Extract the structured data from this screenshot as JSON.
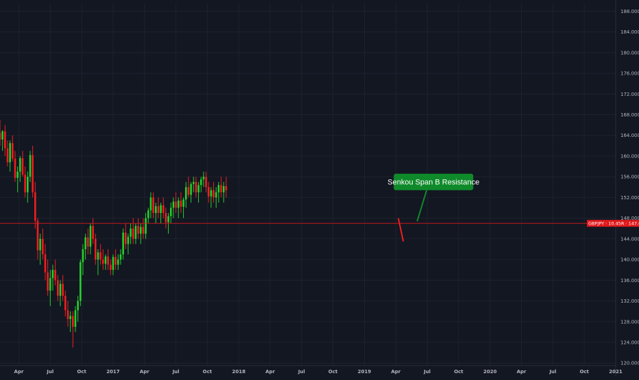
{
  "chart_data": {
    "type": "candlestick",
    "symbol_tag": "GBPJPY · 10.45R · 147.000",
    "current_price": 147.0,
    "y_axis": {
      "range": [
        119.5,
        189.5
      ],
      "ticks": [
        120,
        124,
        128,
        132,
        136,
        140,
        144,
        148,
        152,
        156,
        160,
        164,
        168,
        172,
        176,
        180,
        184,
        188
      ],
      "tick_labels": [
        "120.000",
        "124.000",
        "128.000",
        "132.000",
        "136.000",
        "140.000",
        "144.000",
        "148.000",
        "152.000",
        "156.000",
        "160.000",
        "164.000",
        "168.000",
        "172.000",
        "176.000",
        "180.000",
        "184.000",
        "188.000"
      ]
    },
    "x_axis": {
      "range": [
        2016.1,
        2021.0
      ],
      "ticks": [
        2016.25,
        2016.5,
        2016.75,
        2017.0,
        2017.25,
        2017.5,
        2017.75,
        2018.0,
        2018.25,
        2018.5,
        2018.75,
        2019.0,
        2019.25,
        2019.5,
        2019.75,
        2020.0,
        2020.25,
        2020.5,
        2020.75,
        2021.0
      ],
      "tick_labels": [
        "Apr",
        "Jul",
        "Oct",
        "2017",
        "Apr",
        "Jul",
        "Oct",
        "2018",
        "Apr",
        "Jul",
        "Oct",
        "2019",
        "Apr",
        "Jul",
        "Oct",
        "2020",
        "Apr",
        "Jul",
        "Oct",
        "2021"
      ]
    },
    "grid": true,
    "colors": {
      "background": "#131722",
      "grid": "#1e222d",
      "up": "#26d12a",
      "down": "#f01f1f",
      "ma200": "#f08a8a",
      "senkou_b": "#e0191c",
      "kijun": "#8b1e24",
      "tenkan": "#2f6fb3",
      "chikou": "#3c7a2f",
      "kumo_bear": "#4a1416",
      "kumo_bull": "#1f3a22",
      "callout": "#0f8a2a",
      "price_line": "#e0191c"
    },
    "annotations": [
      {
        "type": "callout",
        "text": "Senkou Span B Resistance",
        "x": 2019.55,
        "y": 155.0,
        "points_to": [
          2019.42,
          147.4
        ]
      },
      {
        "type": "arrow",
        "direction": "down",
        "from": [
          2019.27,
          148.0
        ],
        "to": [
          2019.31,
          143.5
        ]
      }
    ],
    "candles": [
      [
        2016.1,
        164.5,
        167,
        162,
        163.2
      ],
      [
        2016.12,
        163.2,
        165,
        161,
        164.8
      ],
      [
        2016.14,
        164.8,
        166,
        160,
        161.5
      ],
      [
        2016.16,
        161.5,
        163,
        158,
        158.8
      ],
      [
        2016.18,
        158.8,
        163,
        157,
        162.5
      ],
      [
        2016.2,
        162.5,
        164,
        159,
        159.5
      ],
      [
        2016.22,
        159.5,
        161,
        155,
        155.8
      ],
      [
        2016.24,
        155.8,
        158,
        153,
        157.0
      ],
      [
        2016.26,
        157.0,
        160,
        155,
        159.6
      ],
      [
        2016.28,
        159.6,
        161,
        156,
        156.4
      ],
      [
        2016.3,
        156.4,
        158,
        152,
        153.0
      ],
      [
        2016.32,
        153.0,
        157,
        151,
        156.0
      ],
      [
        2016.34,
        156.0,
        161,
        155,
        160.2
      ],
      [
        2016.36,
        160.2,
        162,
        152,
        153.0
      ],
      [
        2016.38,
        153.0,
        155,
        146,
        147.5
      ],
      [
        2016.4,
        147.5,
        148,
        140,
        141.8
      ],
      [
        2016.42,
        141.8,
        145,
        139,
        144.0
      ],
      [
        2016.44,
        144.0,
        146,
        140,
        141.0
      ],
      [
        2016.46,
        141.0,
        143,
        136,
        137.5
      ],
      [
        2016.48,
        137.5,
        140,
        133,
        134.0
      ],
      [
        2016.5,
        134.0,
        138,
        131,
        136.4
      ],
      [
        2016.52,
        136.4,
        139,
        134,
        138.0
      ],
      [
        2016.54,
        138.0,
        140,
        135,
        136.0
      ],
      [
        2016.56,
        136.0,
        137,
        132,
        133.0
      ],
      [
        2016.58,
        133.0,
        136,
        131,
        135.3
      ],
      [
        2016.6,
        135.3,
        137,
        132,
        133.0
      ],
      [
        2016.62,
        133.0,
        134,
        129,
        130.2
      ],
      [
        2016.64,
        130.2,
        132,
        127,
        128.5
      ],
      [
        2016.66,
        128.5,
        130,
        126,
        129.1
      ],
      [
        2016.68,
        129.1,
        130,
        123,
        127.0
      ],
      [
        2016.7,
        127.0,
        131,
        126,
        130.2
      ],
      [
        2016.72,
        130.2,
        133,
        128,
        132.0
      ],
      [
        2016.74,
        132.0,
        140,
        131,
        139.5
      ],
      [
        2016.76,
        139.5,
        143,
        137,
        142.0
      ],
      [
        2016.78,
        142.0,
        145,
        140,
        144.3
      ],
      [
        2016.8,
        144.3,
        146,
        141,
        142.5
      ],
      [
        2016.82,
        142.5,
        147,
        141,
        146.5
      ],
      [
        2016.84,
        146.5,
        148,
        143,
        144.0
      ],
      [
        2016.86,
        144.0,
        145,
        139,
        140.0
      ],
      [
        2016.88,
        140.0,
        142,
        137,
        141.4
      ],
      [
        2016.9,
        141.4,
        143,
        139,
        140.0
      ],
      [
        2016.92,
        140.0,
        142,
        138,
        139.2
      ],
      [
        2016.94,
        139.2,
        141,
        138,
        140.6
      ],
      [
        2016.96,
        140.6,
        142,
        138,
        139.0
      ],
      [
        2016.98,
        139.0,
        140,
        137,
        138.0
      ],
      [
        2017.0,
        138.0,
        141,
        137,
        140.5
      ],
      [
        2017.02,
        140.5,
        142,
        138,
        139.0
      ],
      [
        2017.04,
        139.0,
        141,
        138,
        140.0
      ],
      [
        2017.06,
        140.0,
        142,
        139,
        141.0
      ],
      [
        2017.08,
        141.0,
        146,
        140,
        145.2
      ],
      [
        2017.1,
        145.2,
        147,
        142,
        143.0
      ],
      [
        2017.12,
        143.0,
        145,
        141,
        144.4
      ],
      [
        2017.14,
        144.4,
        147,
        143,
        146.0
      ],
      [
        2017.16,
        146.0,
        148,
        143,
        144.0
      ],
      [
        2017.18,
        144.0,
        147,
        143,
        146.5
      ],
      [
        2017.2,
        146.5,
        148,
        144,
        145.0
      ],
      [
        2017.22,
        145.0,
        147,
        143,
        146.3
      ],
      [
        2017.24,
        146.3,
        148,
        144,
        145.0
      ],
      [
        2017.26,
        145.0,
        149,
        144,
        148.0
      ],
      [
        2017.28,
        148.0,
        150,
        147,
        149.5
      ],
      [
        2017.3,
        149.5,
        153,
        148,
        152.0
      ],
      [
        2017.32,
        152.0,
        153,
        148,
        149.0
      ],
      [
        2017.34,
        149.0,
        151,
        147,
        150.3
      ],
      [
        2017.36,
        150.3,
        152,
        148,
        149.0
      ],
      [
        2017.38,
        149.0,
        151,
        147,
        150.5
      ],
      [
        2017.4,
        150.5,
        152,
        148,
        149.0
      ],
      [
        2017.42,
        149.0,
        150,
        146,
        147.2
      ],
      [
        2017.44,
        147.2,
        149,
        145,
        148.4
      ],
      [
        2017.46,
        148.4,
        151,
        147,
        150.0
      ],
      [
        2017.48,
        150.0,
        152,
        148,
        151.2
      ],
      [
        2017.5,
        151.2,
        153,
        149,
        150.0
      ],
      [
        2017.52,
        150.0,
        152,
        148,
        151.4
      ],
      [
        2017.54,
        151.4,
        153,
        149,
        150.2
      ],
      [
        2017.56,
        150.2,
        152,
        148,
        151.6
      ],
      [
        2017.58,
        151.6,
        155,
        150,
        154.0
      ],
      [
        2017.6,
        154.0,
        156,
        152,
        152.5
      ],
      [
        2017.62,
        152.5,
        155,
        151,
        154.6
      ],
      [
        2017.64,
        154.6,
        156,
        153,
        155.0
      ],
      [
        2017.66,
        155.0,
        156,
        152,
        153.0
      ],
      [
        2017.68,
        153.0,
        155,
        151,
        154.4
      ],
      [
        2017.7,
        154.4,
        156,
        153,
        155.5
      ],
      [
        2017.72,
        155.5,
        157,
        154,
        156.0
      ],
      [
        2017.74,
        156.0,
        157,
        153,
        154.0
      ],
      [
        2017.76,
        154.0,
        155,
        151,
        152.2
      ],
      [
        2017.78,
        152.2,
        154,
        150,
        153.4
      ],
      [
        2017.8,
        153.4,
        155,
        151,
        152.0
      ],
      [
        2017.82,
        152.0,
        154,
        150,
        153.0
      ],
      [
        2017.84,
        153.0,
        155,
        151,
        154.4
      ],
      [
        2017.86,
        154.4,
        156,
        152,
        153.0
      ],
      [
        2017.88,
        153.0,
        155,
        151,
        154.2
      ],
      [
        2017.9,
        154.2,
        156,
        152,
        153.4
      ]
    ]
  }
}
